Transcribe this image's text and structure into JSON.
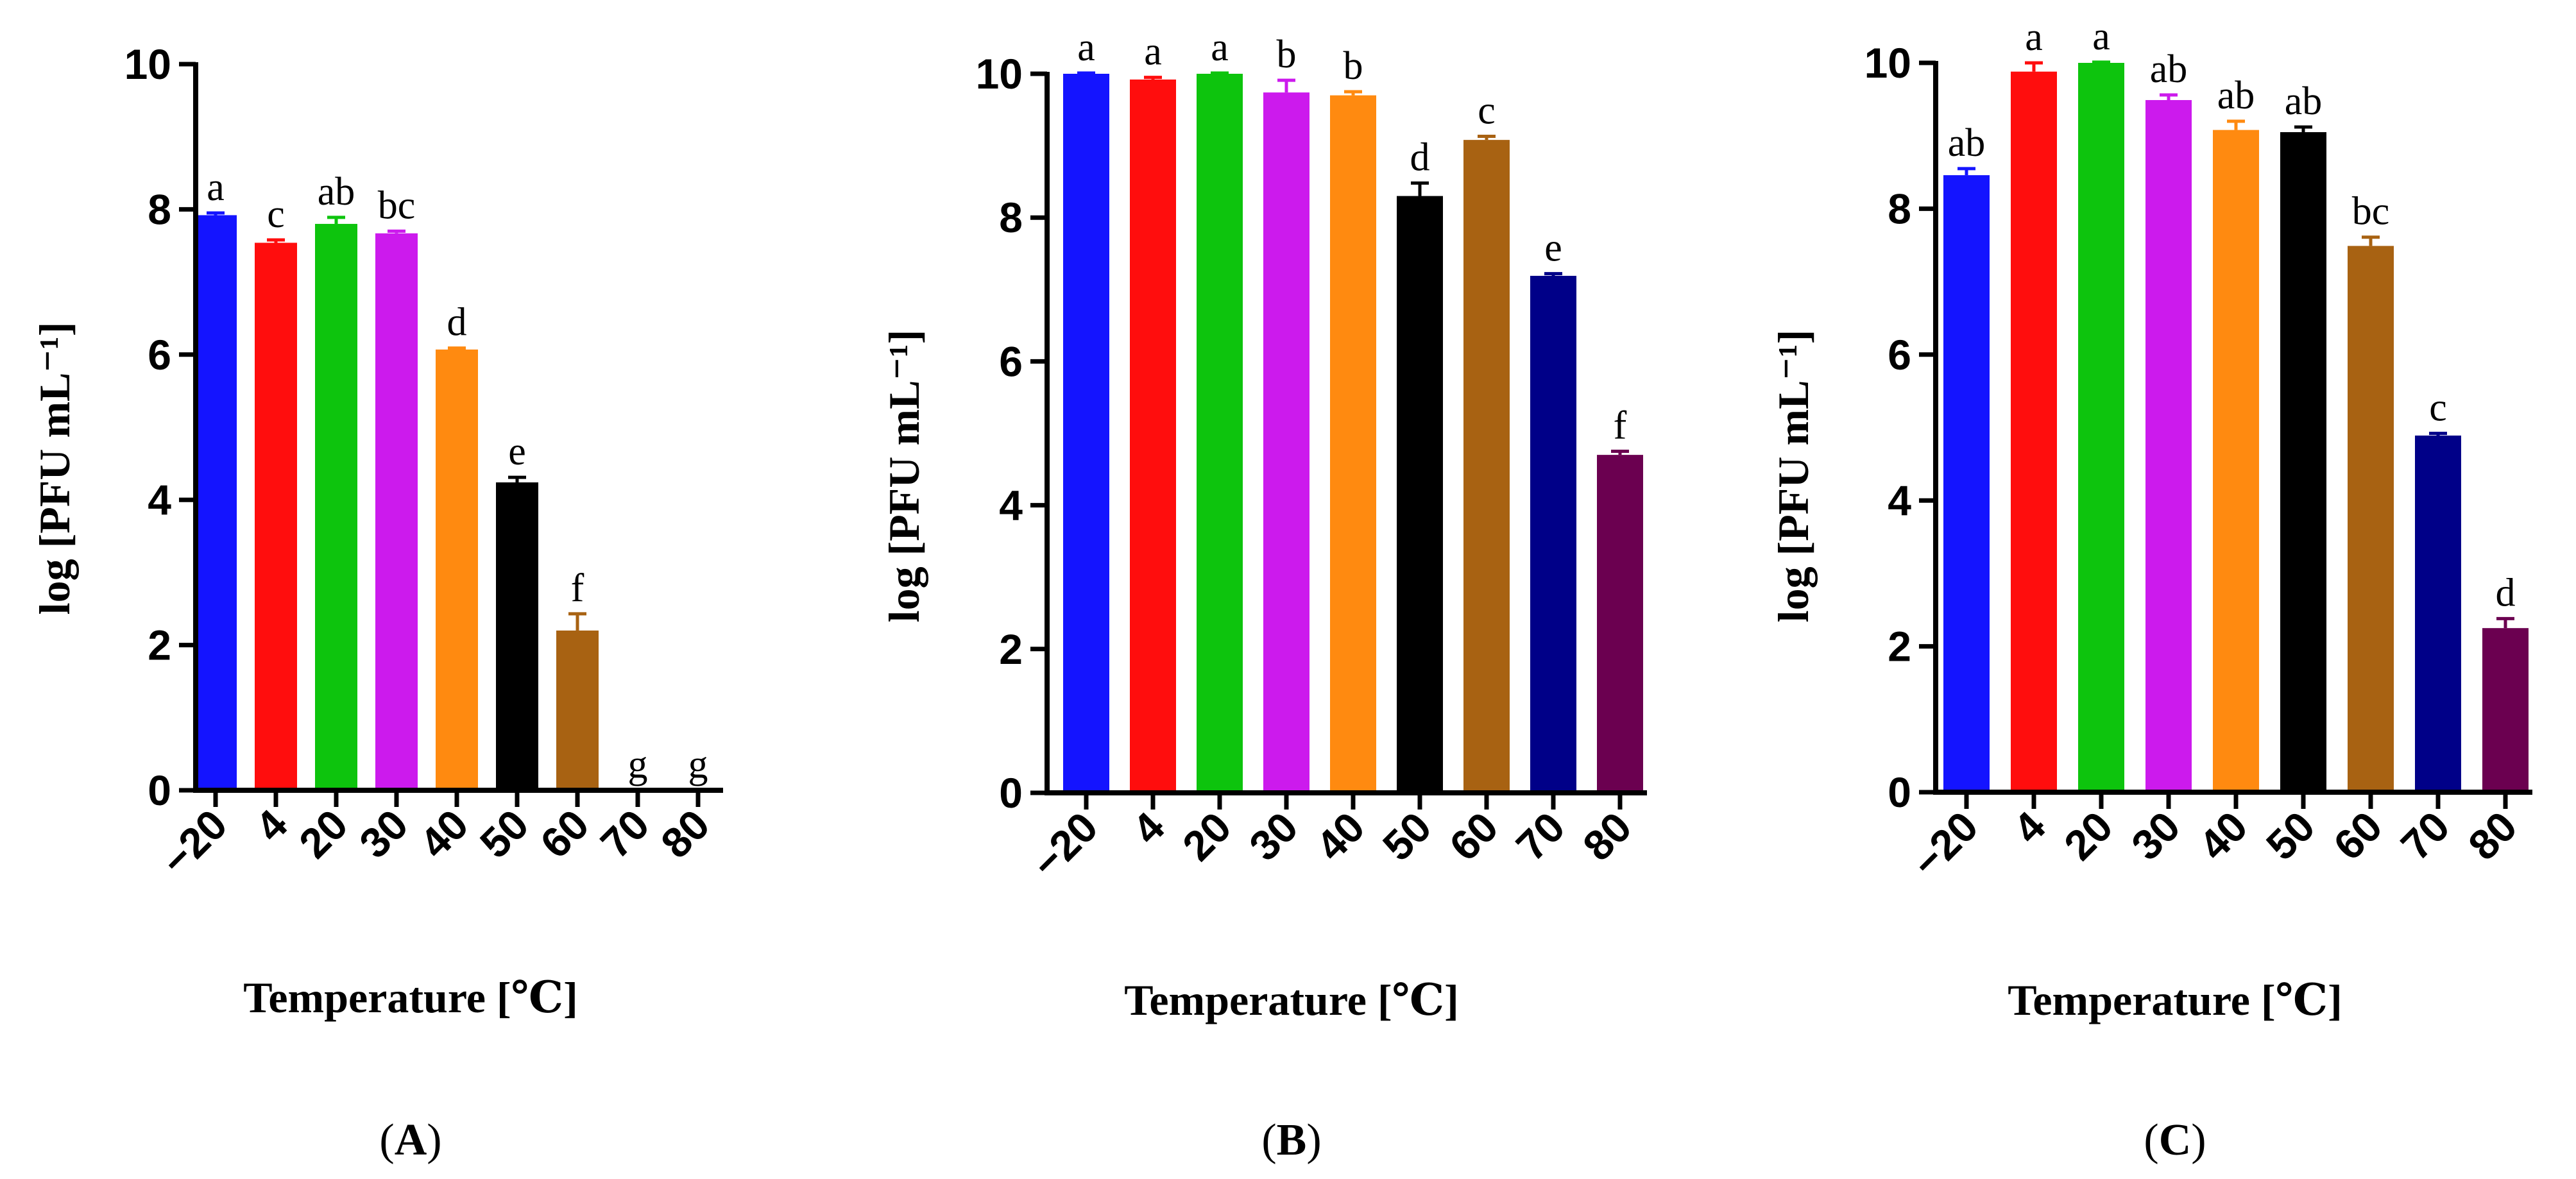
{
  "colors": [
    "#1414ff",
    "#ff0d0d",
    "#0dc40d",
    "#cc1aed",
    "#ff8a10",
    "#000000",
    "#a86212",
    "#000088",
    "#6b0050"
  ],
  "chart_data": [
    {
      "type": "bar",
      "panel_label": "A",
      "categories": [
        "−20",
        "4",
        "20",
        "30",
        "40",
        "50",
        "60",
        "70",
        "80"
      ],
      "values": [
        7.92,
        7.54,
        7.8,
        7.67,
        6.07,
        4.24,
        2.2,
        0,
        0
      ],
      "errors": [
        0.03,
        0.04,
        0.09,
        0.03,
        0.02,
        0.07,
        0.23,
        0,
        0
      ],
      "letters": [
        "a",
        "c",
        "ab",
        "bc",
        "d",
        "e",
        "f",
        "g",
        "g"
      ],
      "xlabel": "Temperature [℃]",
      "ylabel": "log [PFU mL⁻¹]",
      "ylim": [
        0,
        10
      ],
      "yticks": [
        0,
        2,
        4,
        6,
        8,
        10
      ]
    },
    {
      "type": "bar",
      "panel_label": "B",
      "categories": [
        "−20",
        "4",
        "20",
        "30",
        "40",
        "50",
        "60",
        "70",
        "80"
      ],
      "values": [
        10.0,
        9.92,
        10.0,
        9.74,
        9.7,
        8.3,
        9.08,
        7.19,
        4.7
      ],
      "errors": [
        0.01,
        0.03,
        0.01,
        0.17,
        0.05,
        0.18,
        0.05,
        0.03,
        0.05
      ],
      "letters": [
        "a",
        "a",
        "a",
        "b",
        "b",
        "d",
        "c",
        "e",
        "f"
      ],
      "xlabel": "Temperature [℃]",
      "ylabel": "log [PFU mL⁻¹]",
      "ylim": [
        0,
        10
      ],
      "yticks": [
        0,
        2,
        4,
        6,
        8,
        10
      ]
    },
    {
      "type": "bar",
      "panel_label": "C",
      "categories": [
        "−20",
        "4",
        "20",
        "30",
        "40",
        "50",
        "60",
        "70",
        "80"
      ],
      "values": [
        8.46,
        9.88,
        10.0,
        9.49,
        9.08,
        9.05,
        7.49,
        4.89,
        2.25
      ],
      "errors": [
        0.09,
        0.12,
        0.01,
        0.07,
        0.12,
        0.07,
        0.12,
        0.03,
        0.13
      ],
      "letters": [
        "ab",
        "a",
        "a",
        "ab",
        "ab",
        "ab",
        "bc",
        "c",
        "d"
      ],
      "xlabel": "Temperature [℃]",
      "ylabel": "log [PFU mL⁻¹]",
      "ylim": [
        0,
        10
      ],
      "yticks": [
        0,
        2,
        4,
        6,
        8,
        10
      ]
    }
  ]
}
